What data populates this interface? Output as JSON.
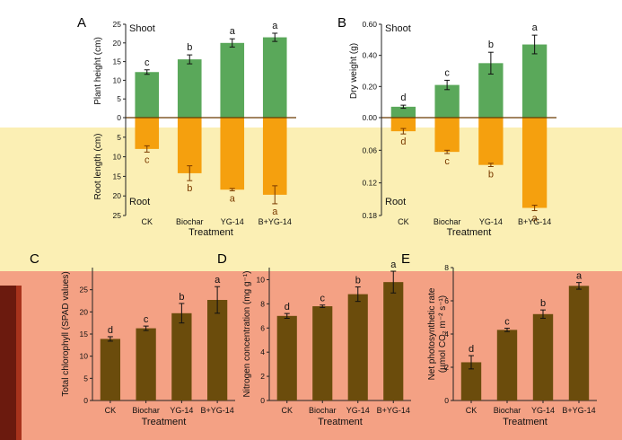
{
  "chart_data": [
    {
      "panel": "A",
      "type": "bar",
      "xlabel": "Treatment",
      "categories": [
        "CK",
        "Biochar",
        "YG-14",
        "B+YG-14"
      ],
      "top": {
        "region_label": "Shoot",
        "ylabel": "Plant height (cm)",
        "ylim": [
          0,
          25
        ],
        "ticks": [
          "0",
          "5",
          "10",
          "15",
          "20",
          "25"
        ],
        "values": [
          12.2,
          15.6,
          20.0,
          21.5
        ],
        "errors": [
          0.6,
          1.2,
          1.1,
          1.1
        ],
        "letters": [
          "c",
          "b",
          "a",
          "a"
        ],
        "color": "#5aa85a"
      },
      "bottom": {
        "region_label": "Root",
        "ylabel": "Root length (cm)",
        "ylim": [
          0,
          25
        ],
        "ticks": [
          "0",
          "5",
          "10",
          "15",
          "20",
          "25"
        ],
        "values": [
          8.0,
          14.2,
          18.4,
          19.7
        ],
        "errors": [
          0.8,
          1.9,
          0.3,
          2.3
        ],
        "letters": [
          "c",
          "b",
          "a",
          "a"
        ],
        "color": "#f5a00e"
      }
    },
    {
      "panel": "B",
      "type": "bar",
      "xlabel": "Treatment",
      "categories": [
        "CK",
        "Biochar",
        "YG-14",
        "B+YG-14"
      ],
      "top": {
        "region_label": "Shoot",
        "ylabel": "Dry weight (g)",
        "ylim": [
          0,
          0.6
        ],
        "ticks": [
          "0.00",
          "0.20",
          "0.40",
          "0.60"
        ],
        "values": [
          0.07,
          0.21,
          0.35,
          0.47
        ],
        "errors": [
          0.01,
          0.03,
          0.07,
          0.06
        ],
        "letters": [
          "d",
          "c",
          "b",
          "a"
        ],
        "color": "#5aa85a"
      },
      "bottom": {
        "region_label": "Root",
        "ylabel": "",
        "ylim": [
          0,
          0.18
        ],
        "ticks": [
          "0.00",
          "0.06",
          "0.12",
          "0.18"
        ],
        "values": [
          0.025,
          0.063,
          0.087,
          0.166
        ],
        "errors": [
          0.005,
          0.003,
          0.003,
          0.005
        ],
        "letters": [
          "d",
          "c",
          "b",
          "a"
        ],
        "color": "#f5a00e"
      }
    },
    {
      "panel": "C",
      "type": "bar",
      "ylabel": "Total chlorophyll (SPAD values)",
      "xlabel": "Treatment",
      "categories": [
        "CK",
        "Biochar",
        "YG-14",
        "B+YG-14"
      ],
      "ylim": [
        0,
        30
      ],
      "ticks": [
        "0",
        "5",
        "10",
        "15",
        "20",
        "25"
      ],
      "values": [
        13.9,
        16.3,
        19.7,
        22.7
      ],
      "errors": [
        0.5,
        0.5,
        2.2,
        3.0
      ],
      "letters": [
        "d",
        "c",
        "b",
        "a"
      ],
      "color": "#6b4c0c"
    },
    {
      "panel": "D",
      "type": "bar",
      "ylabel": "Nitrogen concentration (mg g⁻¹)",
      "xlabel": "Treatment",
      "categories": [
        "CK",
        "Biochar",
        "YG-14",
        "B+YG-14"
      ],
      "ylim": [
        0,
        11
      ],
      "ticks": [
        "0",
        "2",
        "4",
        "6",
        "8",
        "10"
      ],
      "values": [
        7.0,
        7.8,
        8.8,
        9.8
      ],
      "errors": [
        0.2,
        0.1,
        0.6,
        0.9
      ],
      "letters": [
        "d",
        "c",
        "b",
        "a"
      ],
      "color": "#6b4c0c"
    },
    {
      "panel": "E",
      "type": "bar",
      "ylabel_line1": "Net photosynthetic rate",
      "ylabel_line2": "(µmol CO₂ m⁻² s⁻¹)",
      "xlabel": "Treatment",
      "categories": [
        "CK",
        "Biochar",
        "YG-14",
        "B+YG-14"
      ],
      "ylim": [
        0,
        8
      ],
      "ticks": [
        "0",
        "2",
        "4",
        "6",
        "8"
      ],
      "values": [
        2.3,
        4.25,
        5.2,
        6.9
      ],
      "errors": [
        0.4,
        0.1,
        0.25,
        0.2
      ],
      "letters": [
        "d",
        "c",
        "b",
        "a"
      ],
      "color": "#6b4c0c"
    }
  ]
}
